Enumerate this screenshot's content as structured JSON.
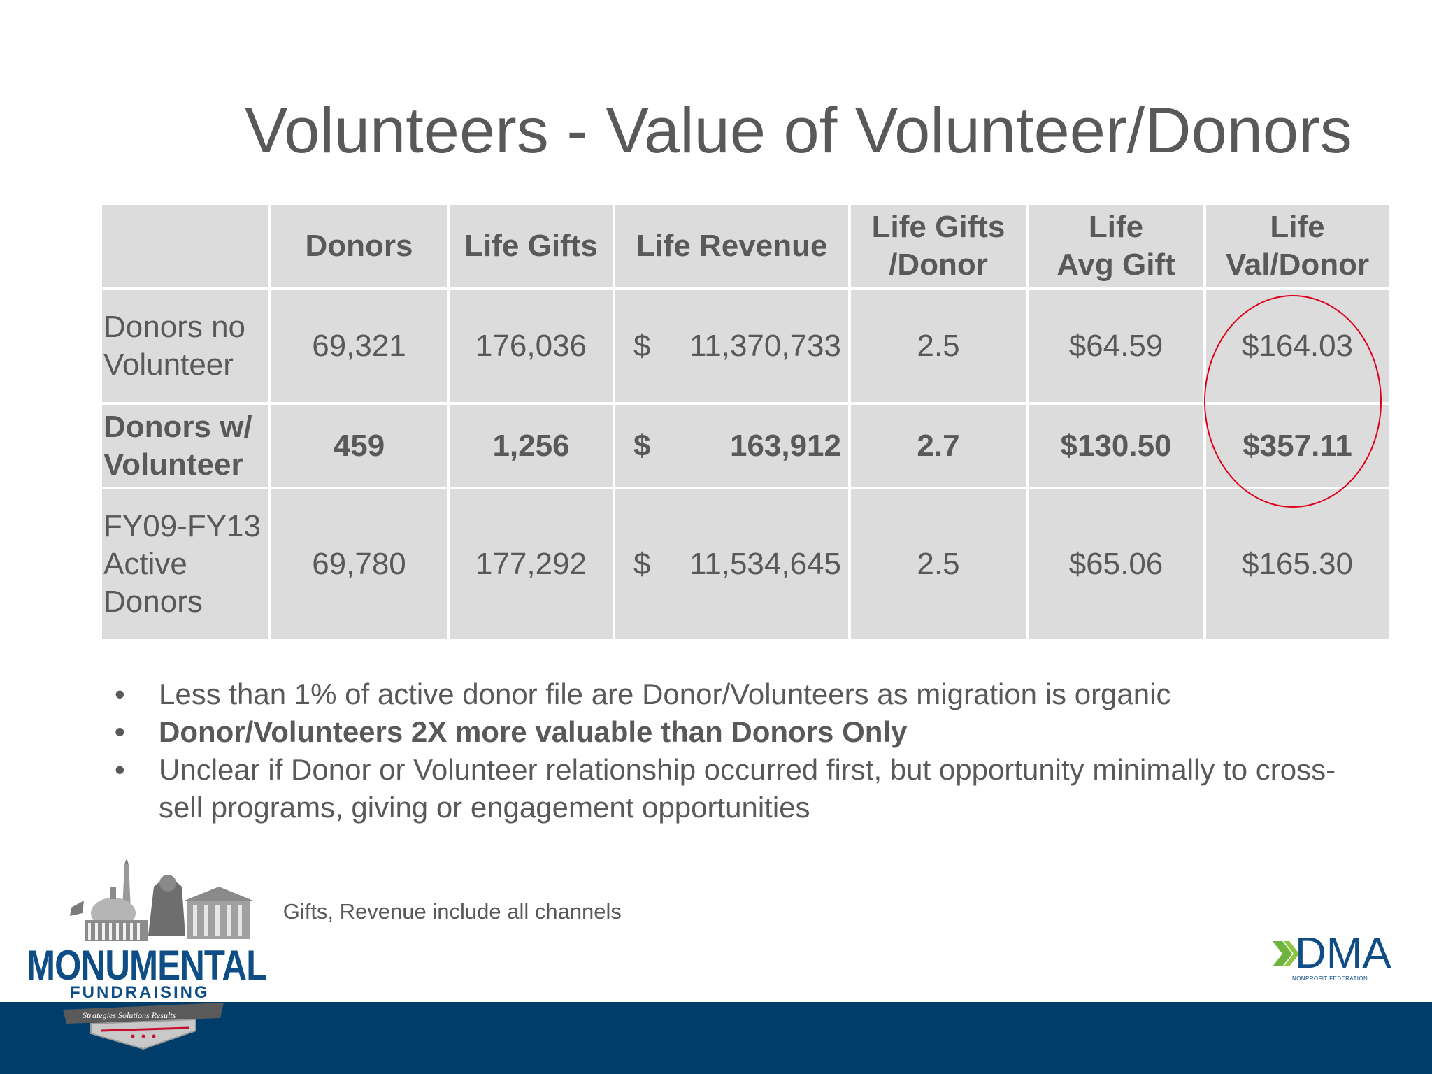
{
  "title": "Volunteers - Value of Volunteer/Donors",
  "table": {
    "headers": [
      {
        "line1": "",
        "line2": ""
      },
      {
        "line1": "Donors",
        "line2": ""
      },
      {
        "line1": "Life Gifts",
        "line2": ""
      },
      {
        "line1": "Life Revenue",
        "line2": ""
      },
      {
        "line1": "Life Gifts",
        "line2": "/Donor"
      },
      {
        "line1": "Life",
        "line2": "Avg Gift"
      },
      {
        "line1": "Life",
        "line2": "Val/Donor"
      }
    ],
    "rows": [
      {
        "label_lines": [
          "Donors no",
          "Volunteer"
        ],
        "donors": "69,321",
        "life_gifts": "176,036",
        "currency": "$",
        "life_revenue": "11,370,733",
        "gifts_per_donor": "2.5",
        "avg_gift": "$64.59",
        "val_per_donor": "$164.03"
      },
      {
        "label_lines": [
          "Donors w/",
          "Volunteer"
        ],
        "donors": "459",
        "life_gifts": "1,256",
        "currency": "$",
        "life_revenue": "163,912",
        "gifts_per_donor": "2.7",
        "avg_gift": "$130.50",
        "val_per_donor": "$357.11"
      },
      {
        "label_lines": [
          "FY09-FY13",
          "Active",
          "Donors"
        ],
        "donors": "69,780",
        "life_gifts": "177,292",
        "currency": "$",
        "life_revenue": "11,534,645",
        "gifts_per_donor": "2.5",
        "avg_gift": "$65.06",
        "val_per_donor": "$165.30"
      }
    ]
  },
  "bullets": [
    {
      "marker": "•",
      "text": "Less than 1% of active donor file are Donor/Volunteers as migration is organic"
    },
    {
      "marker": "•",
      "text": "Donor/Volunteers 2X more valuable than Donors Only"
    },
    {
      "marker": "•",
      "text": "Unclear if Donor or Volunteer relationship occurred first, but opportunity minimally to cross-sell programs, giving or engagement opportunities"
    }
  ],
  "note": "Note: Gifts, Revenue include all channels",
  "logos": {
    "monumental_title": "MONUMENTAL",
    "monumental_sub": "FUNDRAISING",
    "monumental_ribbon": "Strategies  Solutions  Results",
    "dma_name": "DMA",
    "dma_sub": "NONPROFIT FEDERATION"
  },
  "colors": {
    "footer_bar": "#003d6b",
    "highlight_circle": "#e0001b",
    "table_fill": "#dcdcdc",
    "text": "#595959",
    "brand_blue": "#0e4d86",
    "dma_green": "#6fb33f"
  }
}
